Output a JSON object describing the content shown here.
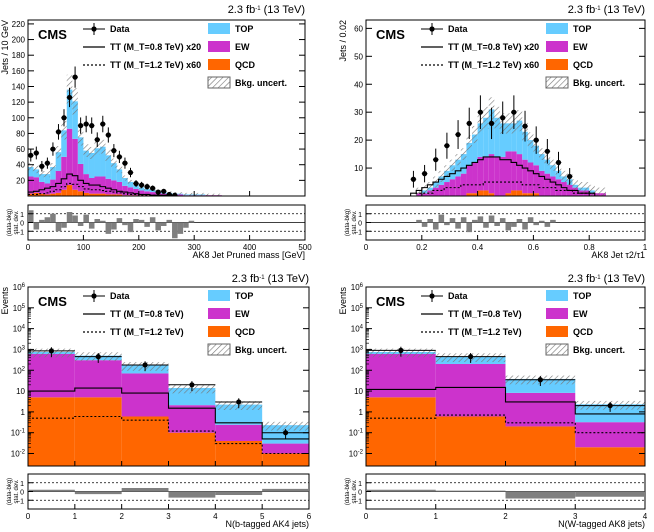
{
  "colors": {
    "top": "#66ccff",
    "ew": "#cc33cc",
    "qcd": "#ff6600",
    "data": "#000000",
    "unc": "#888888",
    "ratio": "#7f7f7f"
  },
  "legend_labels": {
    "data": "Data",
    "top": "TOP",
    "ew": "EW",
    "qcd": "QCD",
    "unc": "Bkg. uncert.",
    "sig1": "TT (M_T=0.8 TeV)",
    "sig2": "TT (M_T=1.2 TeV)"
  },
  "chart_data": [
    {
      "type": "bar",
      "id": "p1",
      "title": "2.3 fb-1 (13 TeV)",
      "label": "CMS",
      "xlabel": "AK8 Jet Pruned mass [GeV]",
      "ylabel": "Jets / 10 GeV",
      "ratio_ylabel": "(data-bkg)/stat. dev.",
      "sig_scales": [
        "x20",
        "x60"
      ],
      "xlim": [
        0,
        500
      ],
      "ylim": [
        0,
        225
      ],
      "log": false,
      "xticks": [
        0,
        100,
        200,
        300,
        400,
        500
      ],
      "yticks": [
        20,
        40,
        60,
        80,
        100,
        120,
        140,
        160,
        180,
        200,
        220
      ],
      "bin_width": 10,
      "qcd": [
        3,
        4,
        3,
        2,
        3,
        4,
        8,
        14,
        8,
        6,
        4,
        3,
        3,
        3,
        2,
        2,
        2,
        1,
        1,
        1,
        1,
        1,
        1,
        1,
        0,
        0,
        0,
        0,
        0,
        0,
        0,
        0,
        0,
        0,
        0,
        0,
        0,
        0,
        0,
        0,
        0,
        0,
        0,
        0,
        0,
        0,
        0,
        0,
        0,
        0
      ],
      "ew": [
        22,
        20,
        15,
        14,
        18,
        28,
        42,
        72,
        65,
        35,
        24,
        20,
        22,
        22,
        20,
        18,
        16,
        12,
        10,
        8,
        6,
        5,
        4,
        3,
        3,
        2,
        2,
        2,
        1,
        1,
        1,
        1,
        1,
        1,
        1,
        0,
        0,
        0,
        0,
        0,
        0,
        0,
        0,
        0,
        0,
        0,
        0,
        0,
        0,
        0
      ],
      "top": [
        12,
        10,
        10,
        12,
        16,
        24,
        34,
        50,
        48,
        34,
        30,
        32,
        36,
        38,
        30,
        22,
        16,
        10,
        7,
        5,
        4,
        3,
        3,
        2,
        2,
        2,
        1,
        1,
        1,
        1,
        1,
        1,
        0,
        0,
        0,
        0,
        0,
        0,
        0,
        0,
        0,
        0,
        0,
        0,
        0,
        0,
        0,
        0,
        0,
        0
      ],
      "sig1": [
        5,
        6,
        8,
        10,
        12,
        16,
        22,
        28,
        26,
        20,
        16,
        14,
        14,
        12,
        10,
        8,
        6,
        5,
        4,
        3,
        2,
        2,
        1,
        1,
        1,
        1,
        0,
        0,
        0,
        0,
        0,
        0,
        0,
        0,
        0,
        0,
        0,
        0,
        0,
        0,
        0,
        0,
        0,
        0,
        0,
        0,
        0,
        0,
        0,
        0
      ],
      "sig2": [
        2,
        2,
        3,
        4,
        6,
        8,
        12,
        16,
        15,
        12,
        9,
        8,
        8,
        7,
        6,
        5,
        4,
        3,
        2,
        2,
        1,
        1,
        1,
        1,
        0,
        0,
        0,
        0,
        0,
        0,
        0,
        0,
        0,
        0,
        0,
        0,
        0,
        0,
        0,
        0,
        0,
        0,
        0,
        0,
        0,
        0,
        0,
        0,
        0,
        0
      ],
      "data_x": [
        5,
        15,
        25,
        35,
        45,
        55,
        65,
        75,
        85,
        95,
        105,
        115,
        125,
        135,
        145,
        155,
        165,
        175,
        185,
        195,
        205,
        215,
        225,
        235,
        245,
        255,
        265
      ],
      "data_y": [
        52,
        55,
        38,
        42,
        60,
        82,
        100,
        126,
        152,
        90,
        92,
        90,
        72,
        92,
        78,
        58,
        50,
        42,
        30,
        16,
        14,
        12,
        10,
        5,
        6,
        2,
        1
      ],
      "pulls": [
        1.4,
        -0.8,
        0.3,
        0.6,
        1.0,
        -1.0,
        -0.6,
        1.2,
        0.8,
        -0.4,
        0.9,
        -0.7,
        0.4,
        0.2,
        -1.3,
        -0.8,
        0.5,
        -0.3,
        -1.1,
        0.4,
        0.3,
        -0.5,
        0.6,
        -0.9,
        -0.4,
        0.3,
        -1.8,
        -1.3,
        -0.6,
        0.2,
        0,
        0,
        0,
        0,
        0,
        0,
        0,
        0,
        0,
        0,
        0,
        0,
        0,
        0,
        0,
        0,
        0,
        0,
        0,
        0
      ],
      "ratio_ylim": [
        -2,
        2
      ],
      "ratio_ticks": [
        -1,
        0,
        1
      ]
    },
    {
      "type": "bar",
      "id": "p2",
      "title": "2.3 fb-1 (13 TeV)",
      "label": "CMS",
      "xlabel": "AK8 Jet τ2/τ1",
      "ylabel": "Jets / 0.02",
      "ratio_ylabel": "(data-bkg)/stat. dev.",
      "sig_scales": [
        "x20",
        "x60"
      ],
      "xlim": [
        0,
        1
      ],
      "ylim": [
        0,
        63
      ],
      "log": false,
      "xticks": [
        0,
        0.2,
        0.4,
        0.6,
        0.8,
        1
      ],
      "yticks": [
        10,
        20,
        30,
        40,
        50,
        60
      ],
      "bin_width": 0.02,
      "qcd": [
        0,
        0,
        0,
        0,
        0,
        0,
        0,
        0,
        0,
        0,
        0,
        0,
        0,
        0,
        0,
        0,
        0,
        0,
        1,
        1,
        2,
        2,
        1,
        0,
        0,
        1,
        2,
        2,
        1,
        1,
        1,
        0,
        0,
        0,
        0,
        0,
        0,
        0,
        0,
        0,
        0,
        0,
        0,
        0,
        0,
        0,
        0,
        0,
        0,
        0
      ],
      "ew": [
        0,
        0,
        0,
        0,
        0,
        0,
        0,
        0,
        0,
        1,
        1,
        2,
        3,
        4,
        5,
        6,
        7,
        8,
        10,
        11,
        12,
        12,
        14,
        14,
        14,
        15,
        14,
        13,
        12,
        11,
        10,
        9,
        8,
        7,
        6,
        5,
        4,
        3,
        2,
        2,
        1,
        1,
        1,
        0,
        0,
        0,
        0,
        0,
        0,
        0
      ],
      "top": [
        0,
        0,
        0,
        0,
        0,
        0,
        0,
        0,
        0,
        0,
        1,
        1,
        2,
        3,
        4,
        5,
        6,
        7,
        8,
        10,
        12,
        14,
        16,
        14,
        12,
        10,
        10,
        12,
        10,
        8,
        7,
        6,
        5,
        4,
        3,
        2,
        2,
        1,
        1,
        1,
        1,
        0,
        0,
        0,
        0,
        0,
        0,
        0,
        0,
        0
      ],
      "sig1": [
        0,
        0,
        0,
        0,
        0,
        0,
        0,
        0,
        1,
        2,
        3,
        4,
        5,
        6,
        7,
        8,
        9,
        10,
        11,
        12,
        13,
        14,
        14,
        14,
        13,
        13,
        12,
        11,
        10,
        9,
        8,
        7,
        6,
        5,
        4,
        3,
        2,
        2,
        1,
        1,
        1,
        0,
        0,
        0,
        0,
        0,
        0,
        0,
        0,
        0
      ],
      "sig2": [
        0,
        0,
        0,
        0,
        0,
        0,
        0,
        0,
        0,
        1,
        1,
        1,
        2,
        2,
        3,
        3,
        3,
        4,
        4,
        4,
        4,
        5,
        5,
        5,
        5,
        5,
        5,
        5,
        4,
        4,
        4,
        3,
        3,
        3,
        2,
        2,
        2,
        1,
        1,
        1,
        1,
        0,
        0,
        0,
        0,
        0,
        0,
        0,
        0,
        0
      ],
      "data_x": [
        0.17,
        0.21,
        0.25,
        0.29,
        0.33,
        0.37,
        0.41,
        0.45,
        0.49,
        0.53,
        0.57,
        0.61,
        0.65,
        0.69,
        0.73
      ],
      "data_y": [
        6,
        8,
        13,
        18,
        22,
        26,
        30,
        26,
        28,
        30,
        25,
        20,
        16,
        12,
        7
      ],
      "pulls": [
        0,
        0,
        0,
        0,
        0,
        0,
        0,
        0,
        0,
        0.3,
        -0.5,
        0.4,
        -0.8,
        0.9,
        -0.3,
        0.5,
        -0.7,
        0.6,
        -1.1,
        0.3,
        0.7,
        -0.6,
        0.8,
        -0.4,
        0.5,
        -0.9,
        -0.5,
        0.4,
        -0.8,
        0.6,
        -0.3,
        0.2,
        -0.5,
        0.3,
        0,
        0,
        0,
        0,
        0,
        0,
        0,
        0,
        0,
        0,
        0,
        0,
        0,
        0,
        0,
        0
      ],
      "ratio_ylim": [
        -2,
        2
      ],
      "ratio_ticks": [
        -1,
        0,
        1
      ]
    },
    {
      "type": "bar",
      "id": "p3",
      "title": "2.3 fb-1 (13 TeV)",
      "label": "CMS",
      "xlabel": "N(b-tagged AK4 jets)",
      "ylabel": "Events",
      "ratio_ylabel": "(data-bkg)/stat. dev.",
      "sig_scales": [
        "",
        ""
      ],
      "xlim": [
        0,
        6
      ],
      "ylim": [
        -2.6,
        6
      ],
      "log": true,
      "xticks": [
        0,
        1,
        2,
        3,
        4,
        5,
        6
      ],
      "yticks": [
        "10^-2",
        "10^-1",
        "1",
        "10",
        "10^2",
        "10^3",
        "10^4",
        "10^5",
        "10^6"
      ],
      "bin_width": 1,
      "qcd": [
        5,
        5,
        0.6,
        0.1,
        0.04,
        0.01
      ],
      "ew": [
        600,
        300,
        70,
        2,
        0.2,
        0.02
      ],
      "top": [
        150,
        200,
        100,
        12,
        2,
        0.2
      ],
      "sig1": [
        10,
        14,
        8,
        1.5,
        0.3,
        0.05
      ],
      "sig2": [
        0.5,
        0.6,
        0.4,
        0.12,
        0.03,
        0.01
      ],
      "data_x": [
        0.5,
        1.5,
        2.5,
        3.5,
        4.5,
        5.5
      ],
      "data_y": [
        850,
        450,
        180,
        20,
        3,
        0.1
      ],
      "pulls": [
        0.2,
        -0.3,
        0.4,
        -0.7,
        -0.4,
        0.3
      ],
      "ratio_ylim": [
        -2,
        2
      ],
      "ratio_ticks": [
        -1,
        0,
        1
      ]
    },
    {
      "type": "bar",
      "id": "p4",
      "title": "2.3 fb-1 (13 TeV)",
      "label": "CMS",
      "xlabel": "N(W-tagged AK8 jets)",
      "ylabel": "Events",
      "ratio_ylabel": "(data-bkg)/stat. dev.",
      "sig_scales": [
        "",
        ""
      ],
      "xlim": [
        0,
        4
      ],
      "ylim": [
        -2.6,
        6
      ],
      "log": true,
      "xticks": [
        0,
        1,
        2,
        3,
        4
      ],
      "yticks": [
        "10^-2",
        "10^-1",
        "1",
        "10",
        "10^2",
        "10^3",
        "10^4",
        "10^5",
        "10^6"
      ],
      "bin_width": 1,
      "qcd": [
        5,
        0.6,
        0.2,
        0.02
      ],
      "ew": [
        600,
        200,
        8,
        0.3
      ],
      "top": [
        150,
        250,
        30,
        2
      ],
      "sig1": [
        12,
        15,
        3,
        0.8
      ],
      "sig2": [
        0.5,
        0.7,
        0.3,
        0.1
      ],
      "data_x": [
        0.5,
        1.5,
        2.5,
        3.5
      ],
      "data_y": [
        900,
        450,
        35,
        2
      ],
      "pulls": [
        0.2,
        0.1,
        -0.8,
        -0.6
      ],
      "ratio_ylim": [
        -2,
        2
      ],
      "ratio_ticks": [
        -1,
        0,
        1
      ]
    }
  ]
}
